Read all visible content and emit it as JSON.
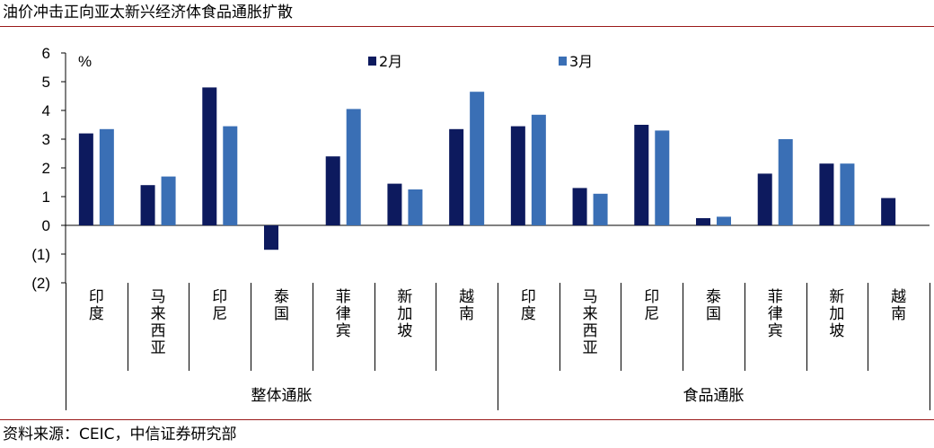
{
  "title": "油价冲击正向亚太新兴经济体食品通胀扩散",
  "source": "资料来源：CEIC，中信证券研究部",
  "chart_data": {
    "type": "bar",
    "unit": "%",
    "ylim": [
      -2,
      6
    ],
    "yticks": [
      6,
      5,
      4,
      3,
      2,
      1,
      0,
      -1,
      -2
    ],
    "ytick_labels": [
      "6",
      "5",
      "4",
      "3",
      "2",
      "1",
      "0",
      "(1)",
      "(2)"
    ],
    "legend_position": "top",
    "groups": [
      {
        "label": "整体通胀",
        "categories": [
          "印度",
          "马来西亚",
          "印尼",
          "泰国",
          "菲律宾",
          "新加坡",
          "越南"
        ]
      },
      {
        "label": "食品通胀",
        "categories": [
          "印度",
          "马来西亚",
          "印尼",
          "泰国",
          "菲律宾",
          "新加坡",
          "越南"
        ]
      }
    ],
    "series": [
      {
        "name": "2月",
        "color": "#0d1a5e",
        "values": [
          3.2,
          1.4,
          4.8,
          -0.85,
          2.4,
          1.45,
          3.35,
          3.45,
          1.3,
          3.5,
          0.25,
          1.8,
          2.15,
          0.95
        ]
      },
      {
        "name": "3月",
        "color": "#3a6fb5",
        "values": [
          3.35,
          1.7,
          3.45,
          null,
          4.05,
          1.25,
          4.65,
          3.85,
          1.1,
          3.3,
          0.3,
          3.0,
          2.15,
          null
        ]
      }
    ]
  }
}
